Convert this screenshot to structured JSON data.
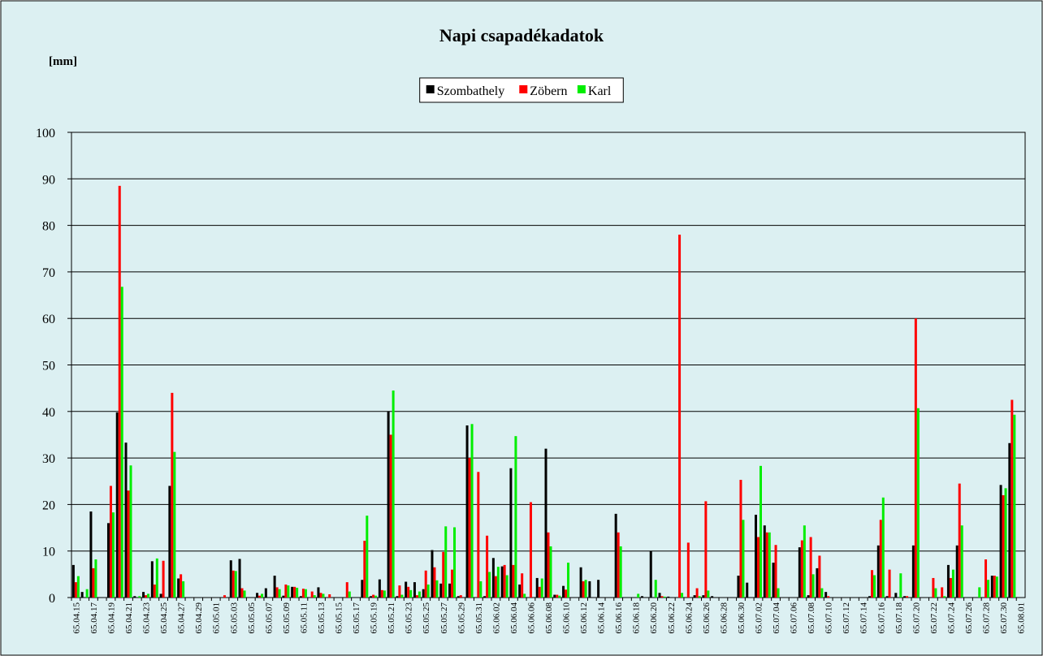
{
  "chart_data": {
    "type": "bar",
    "title": "Napi csapadékadatok",
    "y_label": "[mm]",
    "categories": [
      "65.04.15",
      null,
      "65.04.17",
      null,
      "65.04.19",
      null,
      "65.04.21",
      null,
      "65.04.23",
      null,
      "65.04.25",
      null,
      "65.04.27",
      null,
      "65.04.29",
      null,
      "65.05.01",
      null,
      "65.05.03",
      null,
      "65.05.05",
      null,
      "65.05.07",
      null,
      "65.05.09",
      null,
      "65.05.11",
      null,
      "65.05.13",
      null,
      "65.05.15",
      null,
      "65.05.17",
      null,
      "65.05.19",
      null,
      "65.05.21",
      null,
      "65.05.23",
      null,
      "65.05.25",
      null,
      "65.05.27",
      null,
      "65.05.29",
      null,
      "65.05.31",
      null,
      "65.06.02",
      null,
      "65.06.04",
      null,
      "65.06.06",
      null,
      "65.06.08",
      null,
      "65.06.10",
      null,
      "65.06.12",
      null,
      "65.06.14",
      null,
      "65.06.16",
      null,
      "65.06.18",
      null,
      "65.06.20",
      null,
      "65.06.22",
      null,
      "65.06.24",
      null,
      "65.06.26",
      null,
      "65.06.28",
      null,
      "65.06.30",
      null,
      "65.07.02",
      null,
      "65.07.04",
      null,
      "65.07.06",
      null,
      "65.07.08",
      null,
      "65.07.10",
      null,
      "65.07.12",
      null,
      "65.07.14",
      null,
      "65.07.16",
      null,
      "65.07.18",
      null,
      "65.07.20",
      null,
      "65.07.22",
      null,
      "65.07.24",
      null,
      "65.07.26",
      null,
      "65.07.28",
      null,
      "65.07.30",
      null,
      "65.08.01"
    ],
    "series": [
      {
        "name": "Szombathely",
        "color": "#000000",
        "values": [
          7,
          1.2,
          18.5,
          0,
          16,
          39.8,
          33.3,
          0.3,
          1.2,
          7.8,
          0.8,
          24,
          4.1,
          0,
          0,
          0,
          0,
          0,
          8,
          8.3,
          0,
          1,
          2,
          4.7,
          0.4,
          2.3,
          0.3,
          0,
          2.2,
          0,
          0,
          0,
          0,
          3.8,
          0.3,
          3.9,
          40,
          0.3,
          3.4,
          3.3,
          1.8,
          10.2,
          3,
          3,
          0.3,
          37,
          0,
          0.3,
          8.5,
          6.7,
          27.8,
          2.8,
          0,
          4.2,
          32,
          0.6,
          2.5,
          0,
          6.5,
          3.5,
          3.8,
          0,
          18,
          0,
          0,
          0.3,
          10,
          1,
          0.2,
          0,
          0,
          0.5,
          0.5,
          0.3,
          0,
          0,
          4.7,
          3.2,
          17.8,
          15.5,
          7.5,
          0,
          0,
          10.8,
          0.5,
          6.3,
          1.2,
          0,
          0,
          0,
          0,
          0.3,
          11.2,
          0.3,
          1,
          0.3,
          11.2,
          0,
          0,
          0,
          7,
          11.2,
          0,
          0,
          0,
          4.7,
          24.2,
          33.2,
          0
        ]
      },
      {
        "name": "Zöbern",
        "color": "#ff0000",
        "values": [
          3.3,
          0,
          6.3,
          0,
          24,
          88.5,
          23,
          0,
          0.5,
          2.8,
          7.9,
          44,
          5,
          0,
          0,
          0,
          0,
          0.5,
          5.8,
          2,
          0,
          0.4,
          0,
          2.2,
          2.8,
          2.3,
          1.9,
          1.3,
          1,
          0.7,
          0,
          3.3,
          0,
          12.2,
          0.6,
          1.6,
          35,
          2.6,
          2.3,
          0.5,
          5.8,
          6.5,
          9.8,
          6,
          0.5,
          30,
          27,
          13.3,
          4.6,
          7,
          7,
          5.2,
          20.5,
          2.3,
          14,
          0.6,
          1.7,
          0,
          3.5,
          0,
          0,
          0,
          14,
          0,
          0,
          0,
          0,
          0.3,
          0,
          78,
          11.8,
          2,
          20.7,
          0,
          0,
          0,
          25.3,
          0,
          13,
          14,
          11.3,
          0,
          0,
          12.3,
          13,
          9,
          0.3,
          0,
          0,
          0,
          0,
          5.9,
          16.7,
          6,
          0,
          0.3,
          60,
          0,
          4.2,
          2.2,
          4.2,
          24.5,
          0,
          0,
          8.2,
          4.7,
          22,
          42.5,
          0
        ]
      },
      {
        "name": "Karl",
        "color": "#00ee00",
        "values": [
          4.6,
          1.8,
          8.2,
          0,
          18.3,
          66.8,
          28.4,
          0.3,
          0.8,
          8.4,
          0,
          31.3,
          3.5,
          0,
          0,
          0,
          0,
          0,
          5.7,
          1.5,
          0,
          0.8,
          0,
          1.8,
          2.6,
          2.1,
          1.8,
          0.5,
          0.8,
          0,
          0,
          1.3,
          0,
          17.6,
          0.4,
          1.5,
          44.5,
          0.6,
          1.6,
          1.3,
          2.8,
          3.7,
          15.3,
          15.1,
          0,
          37.3,
          3.5,
          5.5,
          6.6,
          4.8,
          34.7,
          0.8,
          0,
          4.1,
          11,
          0.4,
          7.5,
          0,
          3.8,
          0,
          0,
          0,
          11,
          0,
          0.8,
          0,
          3.8,
          0.2,
          0,
          1,
          0,
          0.3,
          1.5,
          0,
          0,
          0,
          16.7,
          0,
          28.3,
          14,
          2,
          0,
          0,
          15.5,
          5,
          2,
          0,
          0,
          0,
          0,
          0,
          4.8,
          21.5,
          0,
          5.2,
          0,
          40.7,
          0,
          2,
          0.3,
          6,
          15.5,
          0,
          2.2,
          3.8,
          4.5,
          23.5,
          39.3,
          0
        ]
      }
    ],
    "ylim": [
      0,
      100
    ],
    "yticks": [
      0,
      10,
      20,
      30,
      40,
      50,
      60,
      70,
      80,
      90,
      100
    ],
    "grid": true,
    "legend": "top"
  }
}
